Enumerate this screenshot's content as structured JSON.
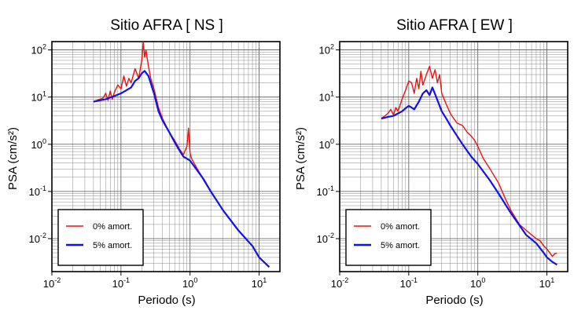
{
  "chart_data": [
    {
      "type": "line",
      "title": "Sitio AFRA [ NS ]",
      "xlabel": "Periodo (s)",
      "ylabel": "PSA (cm/s²)",
      "xscale": "log",
      "yscale": "log",
      "xlim": [
        0.01,
        20
      ],
      "ylim": [
        0.002,
        150
      ],
      "xticks": [
        {
          "base": "10",
          "exp": "-2",
          "value": 0.01
        },
        {
          "base": "10",
          "exp": "-1",
          "value": 0.1
        },
        {
          "base": "10",
          "exp": "0",
          "value": 1
        },
        {
          "base": "10",
          "exp": "1",
          "value": 10
        }
      ],
      "yticks": [
        {
          "base": "10",
          "exp": "-2",
          "value": 0.01
        },
        {
          "base": "10",
          "exp": "-1",
          "value": 0.1
        },
        {
          "base": "10",
          "exp": "0",
          "value": 1
        },
        {
          "base": "10",
          "exp": "1",
          "value": 10
        },
        {
          "base": "10",
          "exp": "2",
          "value": 100
        }
      ],
      "grid": true,
      "legend_position": "bottom-left",
      "series": [
        {
          "name": "0% amort.",
          "color": "#ee1111",
          "x": [
            0.04,
            0.055,
            0.06,
            0.065,
            0.07,
            0.075,
            0.08,
            0.09,
            0.1,
            0.11,
            0.12,
            0.13,
            0.14,
            0.16,
            0.18,
            0.2,
            0.21,
            0.22,
            0.23,
            0.25,
            0.27,
            0.3,
            0.35,
            0.4,
            0.5,
            0.6,
            0.7,
            0.8,
            0.9,
            0.95,
            1.0,
            1.05,
            1.2,
            1.5,
            1.6,
            2.0,
            3.0,
            5.0,
            8.0,
            10.0,
            14.0
          ],
          "values": [
            8.0,
            9.5,
            12.0,
            8.5,
            13.5,
            9.0,
            12.5,
            18.0,
            15.0,
            28.0,
            17.0,
            25.0,
            20.0,
            40.0,
            25.0,
            60.0,
            150.0,
            70.0,
            100.0,
            45.0,
            25.0,
            15.0,
            6.0,
            3.5,
            1.8,
            1.2,
            0.8,
            0.6,
            0.9,
            2.2,
            0.65,
            0.5,
            0.35,
            0.2,
            0.18,
            0.1,
            0.04,
            0.015,
            0.007,
            0.004,
            0.0025
          ]
        },
        {
          "name": "5% amort.",
          "color": "#1111ee",
          "x": [
            0.04,
            0.06,
            0.08,
            0.1,
            0.12,
            0.14,
            0.16,
            0.18,
            0.2,
            0.22,
            0.25,
            0.3,
            0.35,
            0.4,
            0.5,
            0.6,
            0.7,
            0.8,
            1.0,
            1.5,
            2.0,
            3.0,
            5.0,
            8.0,
            10.0,
            14.0
          ],
          "values": [
            8.0,
            9.0,
            10.5,
            12.0,
            14.0,
            16.0,
            22.0,
            25.0,
            32.0,
            36.0,
            28.0,
            12.0,
            5.0,
            3.2,
            1.8,
            1.1,
            0.75,
            0.55,
            0.45,
            0.2,
            0.1,
            0.04,
            0.015,
            0.007,
            0.004,
            0.0025
          ]
        }
      ]
    },
    {
      "type": "line",
      "title": "Sitio AFRA [ EW ]",
      "xlabel": "Periodo (s)",
      "ylabel": "PSA (cm/s²)",
      "xscale": "log",
      "yscale": "log",
      "xlim": [
        0.01,
        20
      ],
      "ylim": [
        0.002,
        150
      ],
      "xticks": [
        {
          "base": "10",
          "exp": "-2",
          "value": 0.01
        },
        {
          "base": "10",
          "exp": "-1",
          "value": 0.1
        },
        {
          "base": "10",
          "exp": "0",
          "value": 1
        },
        {
          "base": "10",
          "exp": "1",
          "value": 10
        }
      ],
      "yticks": [
        {
          "base": "10",
          "exp": "-2",
          "value": 0.01
        },
        {
          "base": "10",
          "exp": "-1",
          "value": 0.1
        },
        {
          "base": "10",
          "exp": "0",
          "value": 1
        },
        {
          "base": "10",
          "exp": "1",
          "value": 10
        },
        {
          "base": "10",
          "exp": "2",
          "value": 100
        }
      ],
      "grid": true,
      "legend_position": "bottom-left",
      "series": [
        {
          "name": "0% amort.",
          "color": "#ee1111",
          "x": [
            0.04,
            0.05,
            0.055,
            0.06,
            0.065,
            0.07,
            0.08,
            0.09,
            0.1,
            0.11,
            0.12,
            0.13,
            0.14,
            0.15,
            0.16,
            0.18,
            0.2,
            0.22,
            0.24,
            0.26,
            0.28,
            0.3,
            0.35,
            0.4,
            0.45,
            0.5,
            0.6,
            0.7,
            0.8,
            0.9,
            1.0,
            1.2,
            1.5,
            2.0,
            2.5,
            3.0,
            4.0,
            5.0,
            6.0,
            7.0,
            8.0,
            9.0,
            10.0,
            11.0,
            12.0,
            13.0,
            14.0
          ],
          "values": [
            3.5,
            4.5,
            5.5,
            4.2,
            6.0,
            5.0,
            9.0,
            14.0,
            22.0,
            20.0,
            12.0,
            25.0,
            15.0,
            35.0,
            18.0,
            30.0,
            45.0,
            25.0,
            38.0,
            20.0,
            30.0,
            12.0,
            7.0,
            4.5,
            3.5,
            2.8,
            2.5,
            1.8,
            1.5,
            1.2,
            0.9,
            0.5,
            0.3,
            0.15,
            0.07,
            0.04,
            0.02,
            0.015,
            0.012,
            0.01,
            0.009,
            0.007,
            0.006,
            0.005,
            0.0042,
            0.0048,
            0.0049
          ]
        },
        {
          "name": "5% amort.",
          "color": "#1111ee",
          "x": [
            0.04,
            0.05,
            0.06,
            0.07,
            0.08,
            0.09,
            0.1,
            0.11,
            0.12,
            0.14,
            0.16,
            0.18,
            0.2,
            0.22,
            0.25,
            0.3,
            0.35,
            0.4,
            0.5,
            0.6,
            0.8,
            1.0,
            1.5,
            2.0,
            3.0,
            5.0,
            7.0,
            9.0,
            10.0,
            12.0,
            14.0
          ],
          "values": [
            3.5,
            3.8,
            4.0,
            4.5,
            5.0,
            5.8,
            6.5,
            6.0,
            5.5,
            8.0,
            12.0,
            14.0,
            11.0,
            16.0,
            10.0,
            5.0,
            3.5,
            2.5,
            1.5,
            1.0,
            0.55,
            0.38,
            0.17,
            0.09,
            0.035,
            0.012,
            0.008,
            0.005,
            0.004,
            0.0032,
            0.0028
          ]
        }
      ]
    }
  ]
}
